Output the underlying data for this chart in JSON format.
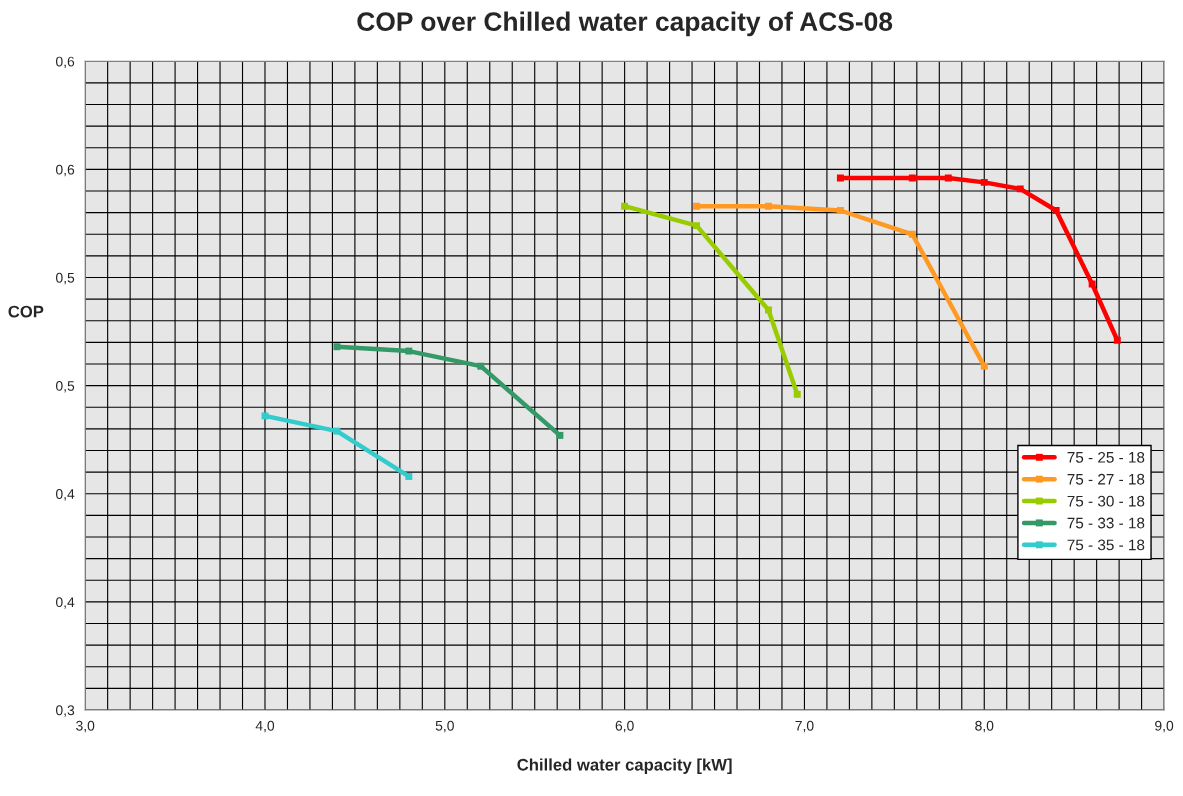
{
  "chart_data": {
    "type": "line",
    "title": "COP over Chilled water capacity of ACS-08",
    "xlabel": "Chilled water capacity [kW]",
    "ylabel": "COP",
    "xlim": [
      3.0,
      9.0
    ],
    "ylim": [
      0.3,
      0.6
    ],
    "xticks": [
      {
        "value": 3,
        "label": "3,0"
      },
      {
        "value": 4,
        "label": "4,0"
      },
      {
        "value": 5,
        "label": "5,0"
      },
      {
        "value": 6,
        "label": "6,0"
      },
      {
        "value": 7,
        "label": "7,0"
      },
      {
        "value": 8,
        "label": "8,0"
      },
      {
        "value": 9,
        "label": "9,0"
      }
    ],
    "yticks": [
      {
        "value": 0.3,
        "label": "0,3"
      },
      {
        "value": 0.35,
        "label": "0,4"
      },
      {
        "value": 0.4,
        "label": "0,4"
      },
      {
        "value": 0.45,
        "label": "0,5"
      },
      {
        "value": 0.5,
        "label": "0,5"
      },
      {
        "value": 0.55,
        "label": "0,6"
      },
      {
        "value": 0.6,
        "label": "0,6"
      }
    ],
    "grid": true,
    "legend": "right",
    "marker": "square",
    "line_style": "solid",
    "series": [
      {
        "name": "75 - 25 - 18",
        "color": "#ff0000",
        "x": [
          7.2,
          7.6,
          7.8,
          8.0,
          8.2,
          8.4,
          8.6,
          8.74
        ],
        "values": [
          0.546,
          0.546,
          0.546,
          0.544,
          0.541,
          0.531,
          0.497,
          0.471
        ]
      },
      {
        "name": "75 - 27 - 18",
        "color": "#ff9922",
        "x": [
          6.4,
          6.8,
          7.2,
          7.6,
          8.0
        ],
        "values": [
          0.533,
          0.533,
          0.531,
          0.52,
          0.459
        ]
      },
      {
        "name": "75 - 30 - 18",
        "color": "#99cc00",
        "x": [
          6.0,
          6.4,
          6.8,
          6.96
        ],
        "values": [
          0.533,
          0.524,
          0.485,
          0.446
        ]
      },
      {
        "name": "75 - 33 - 18",
        "color": "#339966",
        "x": [
          4.4,
          4.8,
          5.2,
          5.64
        ],
        "values": [
          0.468,
          0.466,
          0.459,
          0.427
        ]
      },
      {
        "name": "75 - 35 - 18",
        "color": "#33cccc",
        "x": [
          4.0,
          4.4,
          4.8
        ],
        "values": [
          0.436,
          0.429,
          0.408
        ]
      }
    ]
  }
}
